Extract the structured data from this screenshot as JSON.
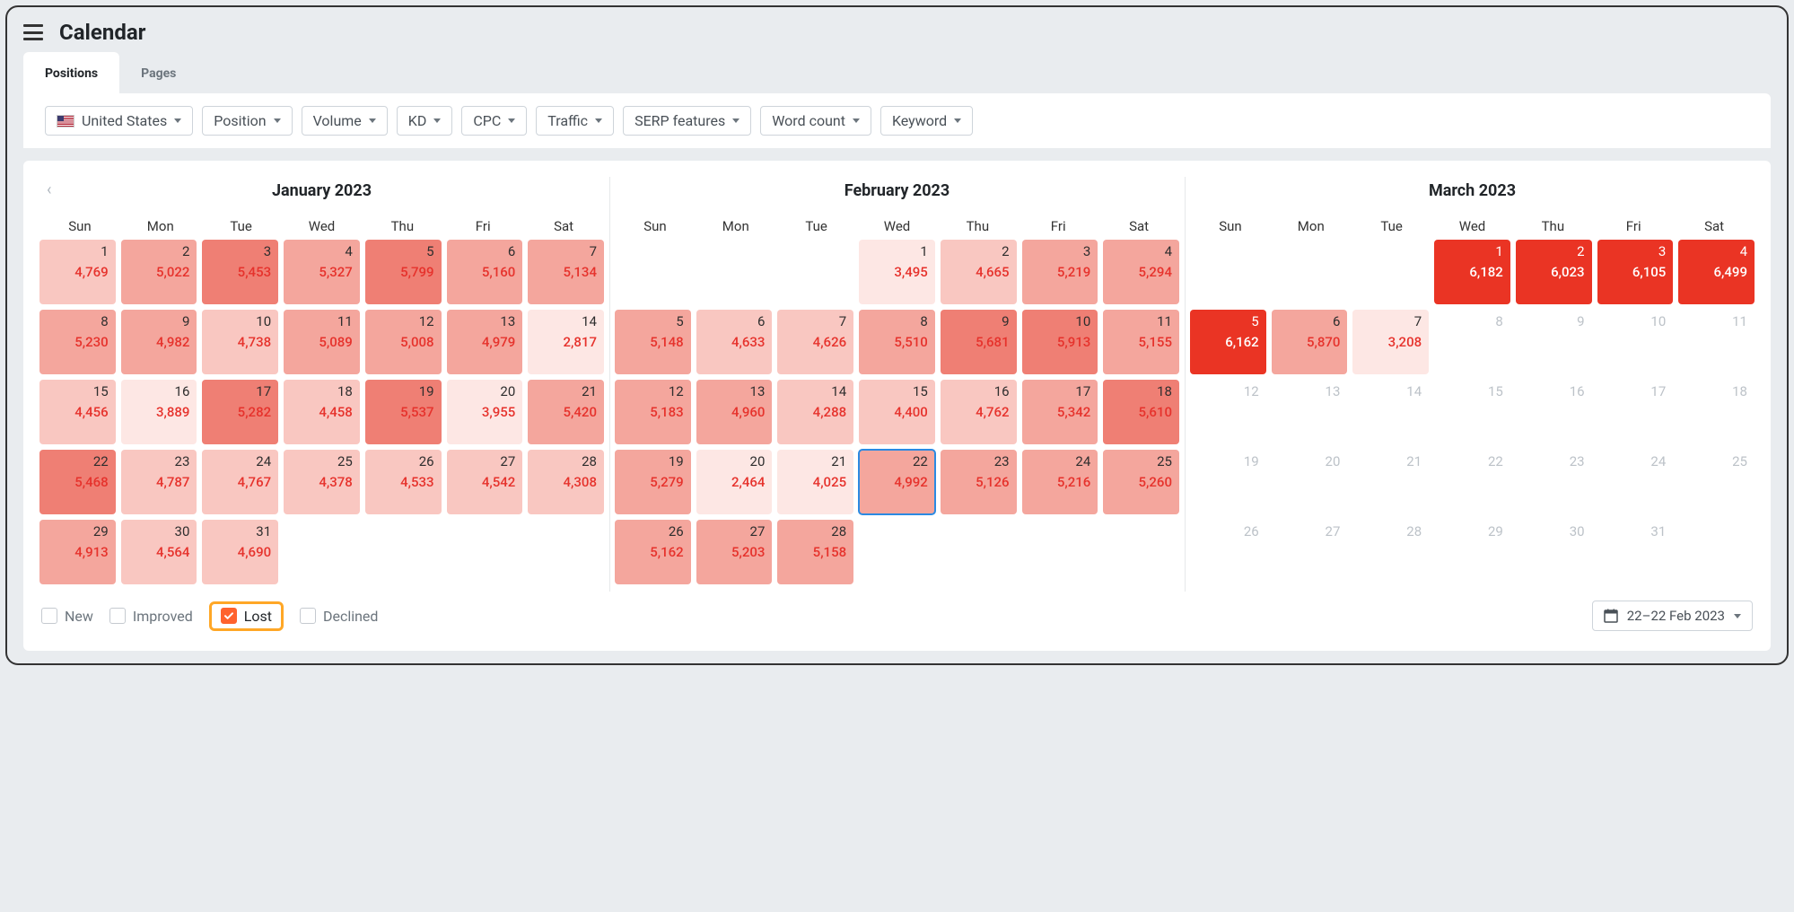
{
  "header": {
    "title": "Calendar"
  },
  "tabs": [
    {
      "label": "Positions",
      "active": true
    },
    {
      "label": "Pages",
      "active": false
    }
  ],
  "filters": [
    {
      "label": "United States",
      "flag": true
    },
    {
      "label": "Position"
    },
    {
      "label": "Volume"
    },
    {
      "label": "KD"
    },
    {
      "label": "CPC"
    },
    {
      "label": "Traffic"
    },
    {
      "label": "SERP features"
    },
    {
      "label": "Word count"
    },
    {
      "label": "Keyword"
    }
  ],
  "heat_colors": {
    "1": "#fde7e4",
    "2": "#f9c7c1",
    "3": "#f4a69d",
    "4": "#ef7f74",
    "5": "#ea3424"
  },
  "heat_dark_min_level": 5,
  "dow_labels": [
    "Sun",
    "Mon",
    "Tue",
    "Wed",
    "Thu",
    "Fri",
    "Sat"
  ],
  "months": [
    {
      "title": "January 2023",
      "nav_prev": true,
      "lead_blanks": 0,
      "days": [
        {
          "d": 1,
          "v": "4,769",
          "lv": 2
        },
        {
          "d": 2,
          "v": "5,022",
          "lv": 3
        },
        {
          "d": 3,
          "v": "5,453",
          "lv": 4
        },
        {
          "d": 4,
          "v": "5,327",
          "lv": 3
        },
        {
          "d": 5,
          "v": "5,799",
          "lv": 4
        },
        {
          "d": 6,
          "v": "5,160",
          "lv": 3
        },
        {
          "d": 7,
          "v": "5,134",
          "lv": 3
        },
        {
          "d": 8,
          "v": "5,230",
          "lv": 3
        },
        {
          "d": 9,
          "v": "4,982",
          "lv": 3
        },
        {
          "d": 10,
          "v": "4,738",
          "lv": 2
        },
        {
          "d": 11,
          "v": "5,089",
          "lv": 3
        },
        {
          "d": 12,
          "v": "5,008",
          "lv": 3
        },
        {
          "d": 13,
          "v": "4,979",
          "lv": 3
        },
        {
          "d": 14,
          "v": "2,817",
          "lv": 1
        },
        {
          "d": 15,
          "v": "4,456",
          "lv": 2
        },
        {
          "d": 16,
          "v": "3,889",
          "lv": 1
        },
        {
          "d": 17,
          "v": "5,282",
          "lv": 4
        },
        {
          "d": 18,
          "v": "4,458",
          "lv": 2
        },
        {
          "d": 19,
          "v": "5,537",
          "lv": 4
        },
        {
          "d": 20,
          "v": "3,955",
          "lv": 1
        },
        {
          "d": 21,
          "v": "5,420",
          "lv": 3
        },
        {
          "d": 22,
          "v": "5,468",
          "lv": 4
        },
        {
          "d": 23,
          "v": "4,787",
          "lv": 2
        },
        {
          "d": 24,
          "v": "4,767",
          "lv": 2
        },
        {
          "d": 25,
          "v": "4,378",
          "lv": 2
        },
        {
          "d": 26,
          "v": "4,533",
          "lv": 2
        },
        {
          "d": 27,
          "v": "4,542",
          "lv": 2
        },
        {
          "d": 28,
          "v": "4,308",
          "lv": 2
        },
        {
          "d": 29,
          "v": "4,913",
          "lv": 3
        },
        {
          "d": 30,
          "v": "4,564",
          "lv": 2
        },
        {
          "d": 31,
          "v": "4,690",
          "lv": 2
        }
      ]
    },
    {
      "title": "February 2023",
      "lead_blanks": 3,
      "days": [
        {
          "d": 1,
          "v": "3,495",
          "lv": 1
        },
        {
          "d": 2,
          "v": "4,665",
          "lv": 2
        },
        {
          "d": 3,
          "v": "5,219",
          "lv": 3
        },
        {
          "d": 4,
          "v": "5,294",
          "lv": 3
        },
        {
          "d": 5,
          "v": "5,148",
          "lv": 3
        },
        {
          "d": 6,
          "v": "4,633",
          "lv": 2
        },
        {
          "d": 7,
          "v": "4,626",
          "lv": 2
        },
        {
          "d": 8,
          "v": "5,510",
          "lv": 3
        },
        {
          "d": 9,
          "v": "5,681",
          "lv": 4
        },
        {
          "d": 10,
          "v": "5,913",
          "lv": 4
        },
        {
          "d": 11,
          "v": "5,155",
          "lv": 3
        },
        {
          "d": 12,
          "v": "5,183",
          "lv": 3
        },
        {
          "d": 13,
          "v": "4,960",
          "lv": 3
        },
        {
          "d": 14,
          "v": "4,288",
          "lv": 2
        },
        {
          "d": 15,
          "v": "4,400",
          "lv": 2
        },
        {
          "d": 16,
          "v": "4,762",
          "lv": 2
        },
        {
          "d": 17,
          "v": "5,342",
          "lv": 3
        },
        {
          "d": 18,
          "v": "5,610",
          "lv": 4
        },
        {
          "d": 19,
          "v": "5,279",
          "lv": 3
        },
        {
          "d": 20,
          "v": "2,464",
          "lv": 1
        },
        {
          "d": 21,
          "v": "4,025",
          "lv": 1
        },
        {
          "d": 22,
          "v": "4,992",
          "lv": 3,
          "selected": true
        },
        {
          "d": 23,
          "v": "5,126",
          "lv": 3
        },
        {
          "d": 24,
          "v": "5,216",
          "lv": 3
        },
        {
          "d": 25,
          "v": "5,260",
          "lv": 3
        },
        {
          "d": 26,
          "v": "5,162",
          "lv": 3
        },
        {
          "d": 27,
          "v": "5,203",
          "lv": 3
        },
        {
          "d": 28,
          "v": "5,158",
          "lv": 3
        }
      ]
    },
    {
      "title": "March 2023",
      "lead_blanks": 3,
      "days": [
        {
          "d": 1,
          "v": "6,182",
          "lv": 5
        },
        {
          "d": 2,
          "v": "6,023",
          "lv": 5
        },
        {
          "d": 3,
          "v": "6,105",
          "lv": 5
        },
        {
          "d": 4,
          "v": "6,499",
          "lv": 5
        },
        {
          "d": 5,
          "v": "6,162",
          "lv": 5
        },
        {
          "d": 6,
          "v": "5,870",
          "lv": 3
        },
        {
          "d": 7,
          "v": "3,208",
          "lv": 1
        },
        {
          "d": 8,
          "inactive": true
        },
        {
          "d": 9,
          "inactive": true
        },
        {
          "d": 10,
          "inactive": true
        },
        {
          "d": 11,
          "inactive": true
        },
        {
          "d": 12,
          "inactive": true
        },
        {
          "d": 13,
          "inactive": true
        },
        {
          "d": 14,
          "inactive": true
        },
        {
          "d": 15,
          "inactive": true
        },
        {
          "d": 16,
          "inactive": true
        },
        {
          "d": 17,
          "inactive": true
        },
        {
          "d": 18,
          "inactive": true
        },
        {
          "d": 19,
          "inactive": true
        },
        {
          "d": 20,
          "inactive": true
        },
        {
          "d": 21,
          "inactive": true
        },
        {
          "d": 22,
          "inactive": true
        },
        {
          "d": 23,
          "inactive": true
        },
        {
          "d": 24,
          "inactive": true
        },
        {
          "d": 25,
          "inactive": true
        },
        {
          "d": 26,
          "inactive": true
        },
        {
          "d": 27,
          "inactive": true
        },
        {
          "d": 28,
          "inactive": true
        },
        {
          "d": 29,
          "inactive": true
        },
        {
          "d": 30,
          "inactive": true
        },
        {
          "d": 31,
          "inactive": true
        }
      ]
    }
  ],
  "legend": [
    {
      "label": "New",
      "checked": false
    },
    {
      "label": "Improved",
      "checked": false
    },
    {
      "label": "Lost",
      "checked": true,
      "highlight": true
    },
    {
      "label": "Declined",
      "checked": false
    }
  ],
  "date_picker": {
    "label": "22–22 Feb 2023"
  }
}
